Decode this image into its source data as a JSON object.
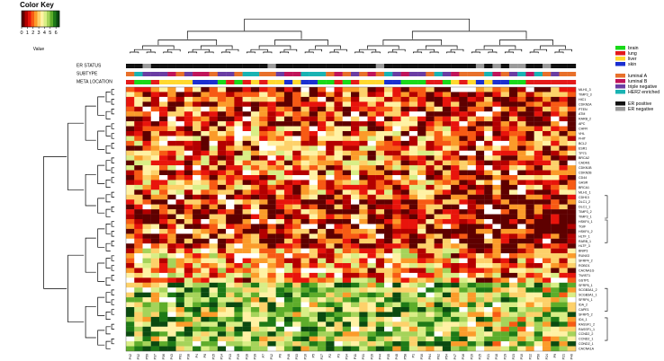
{
  "chart_data": {
    "type": "heatmap",
    "title": "",
    "color_key": {
      "title": "Color Key",
      "xlabel": "Value",
      "ticks": [
        "0",
        "1",
        "2",
        "3",
        "4",
        "5",
        "6"
      ],
      "range": [
        0,
        6.6
      ],
      "colors": [
        "#5e0000",
        "#b30000",
        "#e8140c",
        "#f75a14",
        "#fb9b2a",
        "#fdd16a",
        "#fff2a4",
        "#d9ee86",
        "#a5d35a",
        "#5ead2b",
        "#1e7a17",
        "#0b4a10"
      ]
    },
    "track_labels": [
      "ER STATUS",
      "SUBTYPE",
      "META LOCATION"
    ],
    "rows": [
      "MLH1_3",
      "TIMP3_3",
      "HIC1",
      "CDKN2A",
      "PTEN",
      "ATM",
      "RARB_2",
      "APC",
      "CHFR",
      "VHL",
      "FHIT",
      "BCL2",
      "ESR1",
      "TP73",
      "BRCA2",
      "CADM1",
      "CDKN1B",
      "CDKN2B",
      "CD44",
      "GASR",
      "BRCA1",
      "MLH1_1",
      "CDH13",
      "DLC1_2",
      "DLC1_1",
      "TIMP3_2",
      "TIMP3_1",
      "HSKF4_1",
      "TGIF",
      "HSKF4_2",
      "HLTF_1",
      "RARB_1",
      "HLTF_3",
      "BNIP3",
      "RUNX3",
      "SFRP4_2",
      "ROBO1",
      "CACNA1G",
      "TWIST1",
      "GSTP1",
      "SFRP5_1",
      "SCGB3A1_2",
      "SCGB3A1_1",
      "SFRP4_1",
      "IDA_2",
      "CAPE1",
      "SFRP5_2",
      "ID4_1",
      "RASSF1_2",
      "RASSF1_1",
      "CCND2_2",
      "CCND2_1",
      "COND2_1",
      "CACNA1A"
    ],
    "columns": [
      "P42",
      "P32",
      "P59",
      "P37",
      "P36",
      "P43",
      "P61",
      "P38",
      "P4",
      "P8",
      "P15",
      "P14",
      "P13",
      "P19",
      "P28",
      "P39",
      "P7",
      "P12",
      "P6",
      "P46",
      "P33",
      "P16",
      "P5",
      "P27",
      "P2",
      "P3",
      "P34",
      "P11",
      "P31",
      "P26",
      "P44",
      "P35",
      "P48",
      "P58",
      "P1",
      "P30",
      "P64",
      "P62",
      "P54",
      "P47",
      "P16",
      "P20",
      "P25",
      "P21",
      "P18",
      "P29",
      "P23",
      "P10",
      "P22",
      "P50",
      "P24",
      "P9",
      "P21",
      "P40"
    ],
    "legends": {
      "meta_location": [
        {
          "label": "brain",
          "color": "#19d919"
        },
        {
          "label": "lung",
          "color": "#e41a1a"
        },
        {
          "label": "liver",
          "color": "#ffd92f"
        },
        {
          "label": "skin",
          "color": "#1a2fd0"
        }
      ],
      "subtype": [
        {
          "label": "luminal A",
          "color": "#e8702a"
        },
        {
          "label": "luminal B",
          "color": "#c0145a"
        },
        {
          "label": "triple negative",
          "color": "#6a3da3"
        },
        {
          "label": "HER2 enriched",
          "color": "#19b3b3"
        }
      ],
      "er_status": [
        {
          "label": "ER positive",
          "color": "#111111"
        },
        {
          "label": "ER negative",
          "color": "#9a9a9a"
        }
      ]
    }
  }
}
